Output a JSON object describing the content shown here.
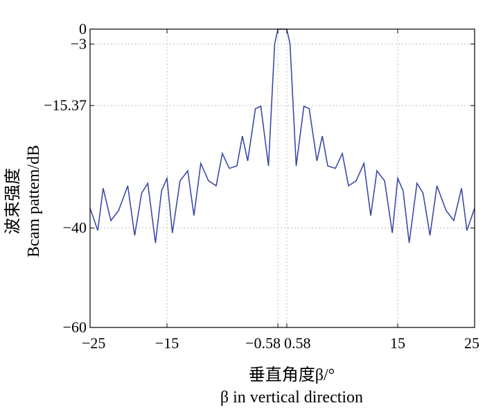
{
  "chart_data": {
    "type": "line",
    "xlabel_cn": "垂直角度β/°",
    "xlabel_en": "β in vertical direction",
    "ylabel_cn": "波束强度",
    "ylabel_en": "Bcam pattem/dB",
    "xlim": [
      -25,
      25
    ],
    "ylim": [
      -60,
      0
    ],
    "xticks": [
      {
        "value": -25,
        "label": "−25"
      },
      {
        "value": -15,
        "label": "−15"
      },
      {
        "value": -0.58,
        "label": "−0.58"
      },
      {
        "value": 0.58,
        "label": "0.58"
      },
      {
        "value": 15,
        "label": "15"
      },
      {
        "value": 25,
        "label": "25"
      }
    ],
    "yticks": [
      {
        "value": 0,
        "label": "0"
      },
      {
        "value": -3,
        "label": "−3"
      },
      {
        "value": -15.37,
        "label": "−15.37"
      },
      {
        "value": -40,
        "label": "−40"
      },
      {
        "value": -60,
        "label": "−60"
      }
    ],
    "grid": true,
    "series_color": "#3b4aa6",
    "series": [
      {
        "x": [
          -25,
          -24.0,
          -23.3,
          -22.3,
          -21.3,
          -20.1,
          -19.2,
          -18.3,
          -17.5,
          -16.5,
          -15.7,
          -15.0,
          -14.3,
          -13.3,
          -12.3,
          -11.5,
          -10.6,
          -9.6,
          -8.6,
          -7.8,
          -6.9,
          -5.9,
          -5.2,
          -4.5,
          -3.5,
          -2.8,
          -1.8,
          -1.0,
          -0.58,
          -0.25,
          0.25,
          0.58,
          1.0,
          1.8,
          2.8,
          3.5,
          4.5,
          5.2,
          5.9,
          6.9,
          7.8,
          8.6,
          9.6,
          10.6,
          11.5,
          12.3,
          13.3,
          14.3,
          15.0,
          15.7,
          16.5,
          17.5,
          18.3,
          19.2,
          20.1,
          21.3,
          22.3,
          23.3,
          24.0,
          25
        ],
        "y": [
          -36.0,
          -40.5,
          -32.0,
          -38.5,
          -36.5,
          -31.5,
          -41.5,
          -33.0,
          -31.0,
          -43.0,
          -32.5,
          -30.0,
          -41.0,
          -30.5,
          -28.5,
          -37.5,
          -27.0,
          -30.5,
          -31.5,
          -25.0,
          -28.0,
          -27.5,
          -21.5,
          -26.5,
          -16.0,
          -15.5,
          -27.5,
          -3.0,
          0.0,
          0.0,
          0.0,
          0.0,
          -3.0,
          -27.5,
          -15.5,
          -16.0,
          -26.5,
          -21.5,
          -27.5,
          -28.0,
          -25.0,
          -31.5,
          -30.5,
          -27.0,
          -37.5,
          -28.5,
          -30.5,
          -41.0,
          -30.0,
          -32.5,
          -43.0,
          -31.0,
          -33.0,
          -41.5,
          -31.5,
          -36.5,
          -38.5,
          -32.0,
          -40.5,
          -36.0
        ]
      }
    ]
  }
}
